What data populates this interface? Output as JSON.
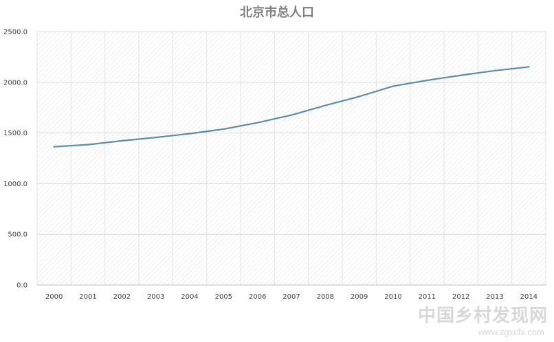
{
  "chart_data": {
    "type": "line",
    "title": "北京市总人口",
    "xlabel": "",
    "ylabel": "",
    "categories": [
      "2000",
      "2001",
      "2002",
      "2003",
      "2004",
      "2005",
      "2006",
      "2007",
      "2008",
      "2009",
      "2010",
      "2011",
      "2012",
      "2013",
      "2014"
    ],
    "series": [
      {
        "values": [
          1364,
          1385,
          1423,
          1456,
          1493,
          1538,
          1601,
          1676,
          1771,
          1860,
          1962,
          2019,
          2069,
          2115,
          2152
        ],
        "color": "#5b8fa8"
      }
    ],
    "ylim": [
      0,
      2500
    ],
    "yticks": [
      "0.0",
      "500.0",
      "1000.0",
      "1500.0",
      "2000.0",
      "2500.0"
    ],
    "ytick_values": [
      0,
      500,
      1000,
      1500,
      2000,
      2500
    ],
    "grid": true,
    "legend": "none",
    "plot_background": "diagonal hatched"
  },
  "watermark": {
    "text": "中国乡村发现网",
    "url": "www.zgxcfx.com",
    "color": "#cfcfcf"
  }
}
